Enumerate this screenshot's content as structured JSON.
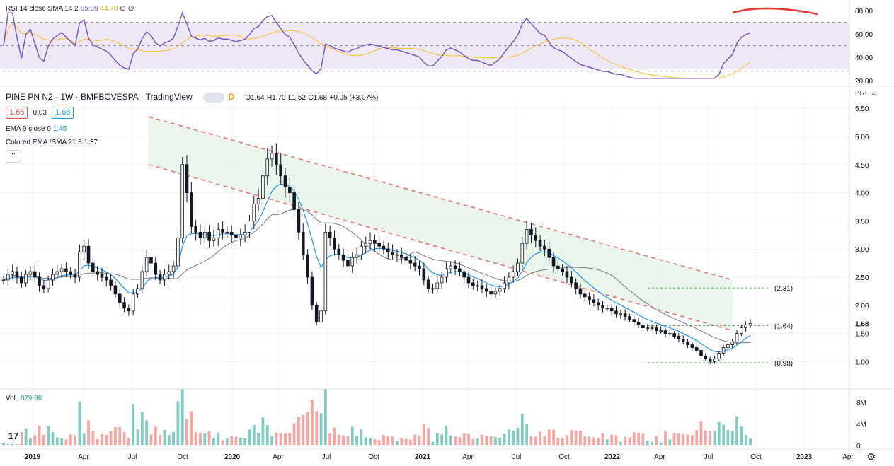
{
  "rsi_legend": {
    "name": "RSI 14 close SMA 14 2",
    "rsi_value": "65.89",
    "sma_value": "44.78",
    "extra1": "∅",
    "extra2": "∅"
  },
  "main_legend": {
    "symbol": "PINE PN N2 · 1W · BMFBOVESPA · TradingView",
    "o": "O1.64",
    "h": "H1.70",
    "l": "L1.52",
    "c": "C1.68",
    "chg": "+0.05 (+3.07%)",
    "bid": "1.65",
    "spread": "0.03",
    "ask": "1.68",
    "d_badge": "D"
  },
  "ema_legend": {
    "name": "EMA 9 close 0",
    "value": "1.45"
  },
  "colored_legend": {
    "name": "Colored EMA /SMA 21 8",
    "value": "1.37"
  },
  "vol_legend": {
    "name": "Vol",
    "value": "879.9K"
  },
  "currency": "BRL",
  "price_ticks": [
    "5.50",
    "5.00",
    "4.50",
    "4.00",
    "3.50",
    "3.00",
    "2.50",
    "2.00",
    "1.50",
    "1.00"
  ],
  "last_price": "1.68",
  "rsi_ticks": [
    "80.00",
    "60.00",
    "40.00",
    "20.00"
  ],
  "vol_ticks": [
    "8M",
    "4M",
    "0"
  ],
  "time_ticks": [
    "2019",
    "Apr",
    "Jul",
    "Oct",
    "2020",
    "Apr",
    "Jul",
    "Oct",
    "2021",
    "Apr",
    "Jul",
    "Oct",
    "2022",
    "Apr",
    "Jul",
    "Oct",
    "2023",
    "Apr"
  ],
  "fib_labels": [
    "(2.31)",
    "(1.64)",
    "(0.98)"
  ],
  "colors": {
    "up": "#26a69a",
    "down": "#ef5350",
    "rsi": "#7e57c2",
    "rsi_sma": "#fbc02d",
    "ema": "#2196f3",
    "sma": "#787b86",
    "channel": "#e57373",
    "fill": "#e8f5e9",
    "rsi_band": "#ede7f6"
  },
  "chart_data": {
    "type": "candlestick",
    "price_axis": {
      "min": 1.0,
      "max": 5.5
    },
    "closes_weekly": [
      2.45,
      2.55,
      2.6,
      2.5,
      2.4,
      2.55,
      2.6,
      2.5,
      2.35,
      2.3,
      2.45,
      2.55,
      2.6,
      2.65,
      2.6,
      2.55,
      2.5,
      2.95,
      3.05,
      2.75,
      2.6,
      2.55,
      2.5,
      2.45,
      2.35,
      2.2,
      2.05,
      1.95,
      1.9,
      2.2,
      2.3,
      2.6,
      2.85,
      2.75,
      2.55,
      2.45,
      2.55,
      2.6,
      2.7,
      3.2,
      4.5,
      4.0,
      3.4,
      3.3,
      3.2,
      3.3,
      3.15,
      3.2,
      3.35,
      3.3,
      3.3,
      3.25,
      3.2,
      3.25,
      3.3,
      3.5,
      3.8,
      3.9,
      4.3,
      4.6,
      4.7,
      4.5,
      4.3,
      4.1,
      4.0,
      3.7,
      3.3,
      2.9,
      2.5,
      2.0,
      1.7,
      1.9,
      3.3,
      3.2,
      3.0,
      2.9,
      2.8,
      2.7,
      2.85,
      2.9,
      3.05,
      3.1,
      3.15,
      3.1,
      3.05,
      3.0,
      2.95,
      2.9,
      2.9,
      2.85,
      2.8,
      2.75,
      2.7,
      2.65,
      2.45,
      2.3,
      2.3,
      2.4,
      2.5,
      2.65,
      2.7,
      2.65,
      2.6,
      2.5,
      2.4,
      2.35,
      2.35,
      2.3,
      2.25,
      2.2,
      2.25,
      2.3,
      2.4,
      2.5,
      2.6,
      2.75,
      3.1,
      3.35,
      3.25,
      3.15,
      3.05,
      3.0,
      2.85,
      2.7,
      2.65,
      2.6,
      2.5,
      2.4,
      2.3,
      2.2,
      2.15,
      2.1,
      2.05,
      2.0,
      1.95,
      1.95,
      1.9,
      1.85,
      1.85,
      1.8,
      1.75,
      1.7,
      1.65,
      1.6,
      1.6,
      1.6,
      1.55,
      1.55,
      1.5,
      1.5,
      1.45,
      1.4,
      1.35,
      1.3,
      1.25,
      1.2,
      1.1,
      1.05,
      1.0,
      1.05,
      1.15,
      1.25,
      1.3,
      1.35,
      1.5,
      1.6,
      1.65,
      1.68
    ],
    "channel_upper": {
      "start": 5.35,
      "end": 2.45
    },
    "channel_lower": {
      "start": 4.5,
      "end": 1.55
    },
    "fib_levels": [
      2.31,
      1.64,
      0.98
    ],
    "rsi_axis": {
      "min": 20,
      "max": 80,
      "bands": [
        70,
        50,
        30
      ]
    }
  }
}
